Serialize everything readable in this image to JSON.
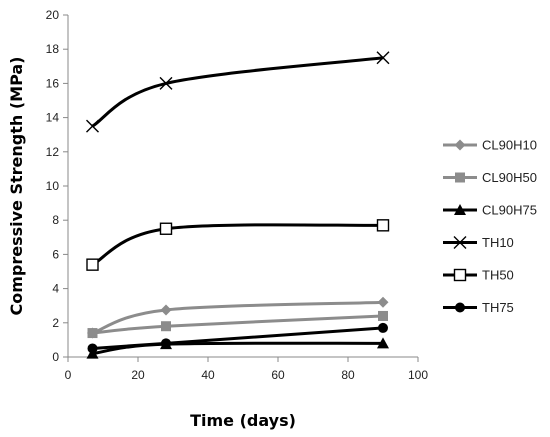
{
  "chart_data": {
    "type": "line",
    "title": "",
    "xlabel": "Time (days)",
    "ylabel": "Compressive Strength (MPa)",
    "xlim": [
      0,
      100
    ],
    "ylim": [
      0,
      20
    ],
    "xticks": [
      0,
      20,
      40,
      60,
      80,
      100
    ],
    "yticks": [
      0,
      2,
      4,
      6,
      8,
      10,
      12,
      14,
      16,
      18,
      20
    ],
    "grid": false,
    "legend_position": "right",
    "series": [
      {
        "name": "CL90H10",
        "x": [
          7,
          28,
          90
        ],
        "values": [
          1.4,
          2.75,
          3.2
        ],
        "color": "#8c8c8c",
        "marker": "diamond",
        "smooth": true
      },
      {
        "name": "CL90H50",
        "x": [
          7,
          28,
          90
        ],
        "values": [
          1.4,
          1.8,
          2.4
        ],
        "color": "#8c8c8c",
        "marker": "square",
        "smooth": true
      },
      {
        "name": "CL90H75",
        "x": [
          7,
          28,
          90
        ],
        "values": [
          0.2,
          0.75,
          0.8
        ],
        "color": "#000000",
        "marker": "triangle",
        "smooth": true
      },
      {
        "name": "TH10",
        "x": [
          7,
          28,
          90
        ],
        "values": [
          13.5,
          16.0,
          17.5
        ],
        "color": "#000000",
        "marker": "x",
        "smooth": true
      },
      {
        "name": "TH50",
        "x": [
          7,
          28,
          90
        ],
        "values": [
          5.4,
          7.5,
          7.7
        ],
        "color": "#000000",
        "marker": "open-square",
        "smooth": true
      },
      {
        "name": "TH75",
        "x": [
          7,
          28,
          90
        ],
        "values": [
          0.5,
          0.8,
          1.7
        ],
        "color": "#000000",
        "marker": "circle",
        "smooth": false
      }
    ]
  }
}
